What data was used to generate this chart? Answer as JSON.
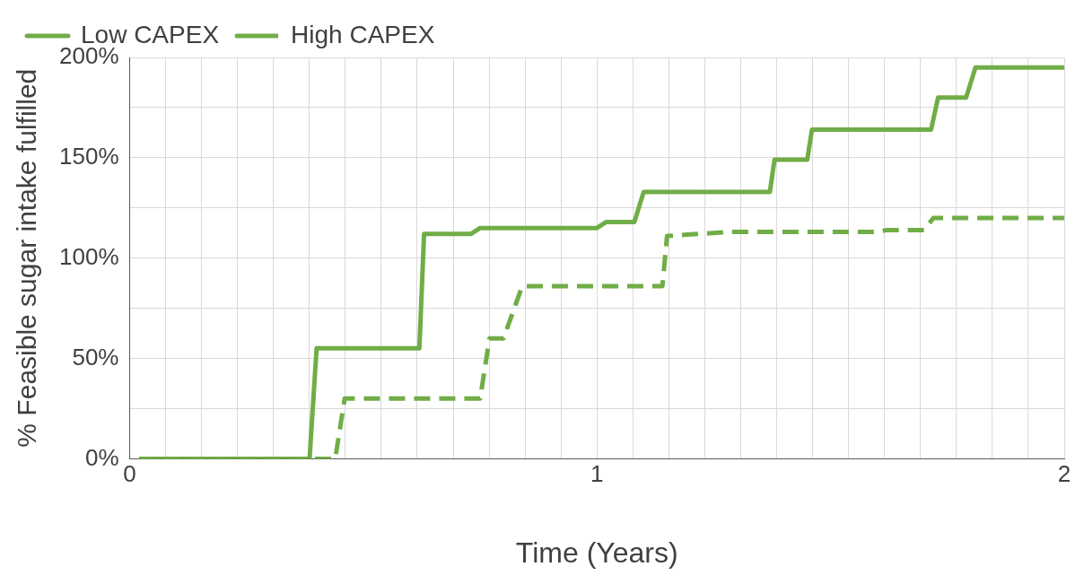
{
  "chart_data": {
    "type": "line",
    "xlabel": "Time (Years)",
    "ylabel": "% Feasible sugar intake fulfilled",
    "xlim": [
      0,
      2
    ],
    "ylim": [
      0,
      200
    ],
    "xticks": [
      0,
      {
        "value": 0.0769,
        "label": null
      },
      {
        "value": 0.1538,
        "label": null
      },
      {
        "value": 0.2308,
        "label": null
      },
      {
        "value": 0.3077,
        "label": null
      },
      {
        "value": 0.3846,
        "label": null
      },
      {
        "value": 0.4615,
        "label": null
      },
      {
        "value": 0.5385,
        "label": null
      },
      {
        "value": 0.6154,
        "label": null
      },
      {
        "value": 0.6923,
        "label": null
      },
      {
        "value": 0.7692,
        "label": null
      },
      {
        "value": 0.8462,
        "label": null
      },
      {
        "value": 0.9231,
        "label": null
      },
      1,
      {
        "value": 1.0769,
        "label": null
      },
      {
        "value": 1.1538,
        "label": null
      },
      {
        "value": 1.2308,
        "label": null
      },
      {
        "value": 1.3077,
        "label": null
      },
      {
        "value": 1.3846,
        "label": null
      },
      {
        "value": 1.4615,
        "label": null
      },
      {
        "value": 1.5385,
        "label": null
      },
      {
        "value": 1.6154,
        "label": null
      },
      {
        "value": 1.6923,
        "label": null
      },
      {
        "value": 1.7692,
        "label": null
      },
      {
        "value": 1.8462,
        "label": null
      },
      {
        "value": 1.9231,
        "label": null
      },
      2
    ],
    "yticks": [
      {
        "value": 0,
        "label": "0%"
      },
      {
        "value": 25,
        "label": null
      },
      {
        "value": 50,
        "label": "50%"
      },
      {
        "value": 75,
        "label": null
      },
      {
        "value": 100,
        "label": "100%"
      },
      {
        "value": 125,
        "label": null
      },
      {
        "value": 150,
        "label": "150%"
      },
      {
        "value": 175,
        "label": null
      },
      {
        "value": 200,
        "label": "200%"
      }
    ],
    "grid": true,
    "legend": "top left",
    "marker": "none",
    "series": [
      {
        "name": "Low CAPEX",
        "color": "#70ad47",
        "line_style": "solid",
        "x": [
          0.02,
          0.385,
          0.4,
          0.62,
          0.63,
          0.73,
          0.75,
          1.0,
          1.02,
          1.08,
          1.1,
          1.37,
          1.38,
          1.45,
          1.46,
          1.715,
          1.73,
          1.79,
          1.81,
          2.0
        ],
        "values": [
          0,
          0,
          55,
          55,
          112,
          112,
          115,
          115,
          118,
          118,
          133,
          133,
          149,
          149,
          164,
          164,
          180,
          180,
          195,
          195
        ]
      },
      {
        "name": "High CAPEX",
        "color": "#70ad47",
        "line_style": "dashed",
        "x": [
          0.02,
          0.44,
          0.46,
          0.75,
          0.77,
          0.8,
          0.84,
          1.14,
          1.15,
          1.28,
          1.6,
          1.62,
          1.7,
          1.72,
          2.0
        ],
        "values": [
          0,
          0,
          30,
          30,
          60,
          60,
          86,
          86,
          111,
          113,
          113,
          114,
          114,
          120,
          120
        ]
      }
    ]
  }
}
